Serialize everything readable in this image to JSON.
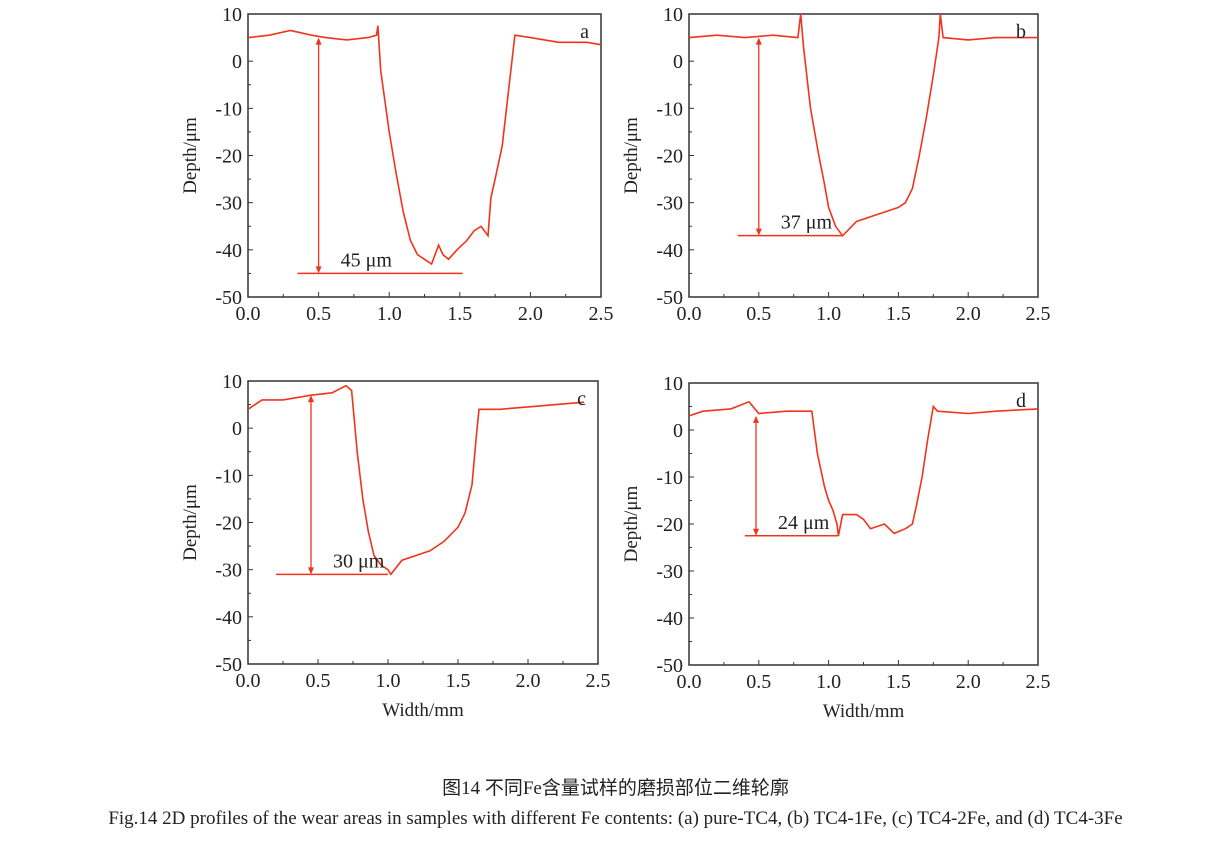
{
  "chart_data": [
    {
      "type": "line",
      "panel_label": "a",
      "xlabel": "",
      "ylabel": "Depth/μm",
      "xlim": [
        0,
        2.5
      ],
      "ylim": [
        -50,
        10
      ],
      "xticks": [
        "0.0",
        "0.5",
        "1.0",
        "1.5",
        "2.0",
        "2.5"
      ],
      "yticks": [
        "10",
        "0",
        "-10",
        "-20",
        "-30",
        "-40",
        "-50"
      ],
      "color": "#f0341c",
      "x": [
        0,
        0.15,
        0.3,
        0.45,
        0.55,
        0.7,
        0.85,
        0.91,
        0.92,
        0.94,
        1.0,
        1.05,
        1.1,
        1.15,
        1.2,
        1.25,
        1.3,
        1.35,
        1.38,
        1.42,
        1.48,
        1.55,
        1.6,
        1.65,
        1.7,
        1.72,
        1.75,
        1.8,
        1.85,
        1.89,
        2.0,
        2.2,
        2.4,
        2.5
      ],
      "y": [
        5,
        5.5,
        6.5,
        5.5,
        5,
        4.5,
        5,
        5.5,
        7.5,
        -2,
        -15,
        -24,
        -32,
        -38,
        -41,
        -42,
        -43,
        -39,
        -41,
        -42,
        -40,
        -38,
        -36,
        -35,
        -37,
        -29,
        -25,
        -18,
        -5,
        5.5,
        5,
        4,
        4,
        3.5
      ],
      "annotation": {
        "label": "45 μm",
        "arrow_x": 0.5,
        "arrow_from": 5,
        "arrow_to": -45,
        "line_y": -45,
        "line_x": [
          0.35,
          1.52
        ]
      }
    },
    {
      "type": "line",
      "panel_label": "b",
      "xlabel": "",
      "ylabel": "Depth/μm",
      "xlim": [
        0,
        2.5
      ],
      "ylim": [
        -50,
        10
      ],
      "xticks": [
        "0.0",
        "0.5",
        "1.0",
        "1.5",
        "2.0",
        "2.5"
      ],
      "yticks": [
        "10",
        "0",
        "-10",
        "-20",
        "-30",
        "-40",
        "-50"
      ],
      "color": "#f0341c",
      "x": [
        0,
        0.2,
        0.4,
        0.6,
        0.78,
        0.8,
        0.82,
        0.87,
        0.93,
        0.97,
        1.0,
        1.05,
        1.1,
        1.2,
        1.3,
        1.4,
        1.5,
        1.55,
        1.6,
        1.65,
        1.7,
        1.75,
        1.79,
        1.8,
        1.82,
        2.0,
        2.2,
        2.5
      ],
      "y": [
        5,
        5.5,
        5,
        5.5,
        5,
        10,
        3,
        -10,
        -20,
        -26,
        -31,
        -35,
        -37,
        -34,
        -33,
        -32,
        -31,
        -30,
        -27,
        -20,
        -12,
        -3,
        5,
        10,
        5,
        4.5,
        5,
        5
      ],
      "annotation": {
        "label": "37 μm",
        "arrow_x": 0.5,
        "arrow_from": 5,
        "arrow_to": -37,
        "line_y": -37,
        "line_x": [
          0.35,
          1.1
        ]
      }
    },
    {
      "type": "line",
      "panel_label": "c",
      "xlabel": "Width/mm",
      "ylabel": "Depth/μm",
      "xlim": [
        0,
        2.5
      ],
      "ylim": [
        -50,
        10
      ],
      "xticks": [
        "0.0",
        "0.5",
        "1.0",
        "1.5",
        "2.0",
        "2.5"
      ],
      "yticks": [
        "10",
        "0",
        "-10",
        "-20",
        "-30",
        "-40",
        "-50"
      ],
      "color": "#f0341c",
      "x": [
        0,
        0.1,
        0.25,
        0.45,
        0.6,
        0.7,
        0.74,
        0.78,
        0.82,
        0.86,
        0.9,
        0.95,
        1.0,
        1.02,
        1.1,
        1.2,
        1.3,
        1.4,
        1.5,
        1.55,
        1.6,
        1.63,
        1.65,
        1.8,
        2.0,
        2.2,
        2.4
      ],
      "y": [
        4,
        6,
        6,
        7,
        7.5,
        9,
        8,
        -5,
        -15,
        -22,
        -27,
        -29,
        -30,
        -31,
        -28,
        -27,
        -26,
        -24,
        -21,
        -18,
        -12,
        -2,
        4,
        4,
        4.5,
        5,
        5.5
      ],
      "annotation": {
        "label": "30 μm",
        "arrow_x": 0.45,
        "arrow_from": 7,
        "arrow_to": -31,
        "line_y": -31,
        "line_x": [
          0.2,
          1.0
        ]
      }
    },
    {
      "type": "line",
      "panel_label": "d",
      "xlabel": "Width/mm",
      "ylabel": "Depth/μm",
      "xlim": [
        0,
        2.5
      ],
      "ylim": [
        -50,
        10
      ],
      "xticks": [
        "0.0",
        "0.5",
        "1.0",
        "1.5",
        "2.0",
        "2.5"
      ],
      "yticks": [
        "10",
        "0",
        "-10",
        "-20",
        "-30",
        "-40",
        "-50"
      ],
      "color": "#f0341c",
      "x": [
        0,
        0.1,
        0.3,
        0.43,
        0.5,
        0.7,
        0.88,
        0.92,
        0.97,
        1.0,
        1.03,
        1.06,
        1.07,
        1.1,
        1.2,
        1.25,
        1.3,
        1.4,
        1.47,
        1.55,
        1.6,
        1.63,
        1.67,
        1.71,
        1.75,
        1.78,
        2.0,
        2.2,
        2.5
      ],
      "y": [
        3,
        4,
        4.5,
        6,
        3.5,
        4,
        4,
        -5,
        -12,
        -15,
        -17,
        -20,
        -22.5,
        -18,
        -18,
        -19,
        -21,
        -20,
        -22,
        -21,
        -20,
        -16,
        -10,
        -2,
        5,
        4,
        3.5,
        4,
        4.5
      ],
      "annotation": {
        "label": "24 μm",
        "arrow_x": 0.48,
        "arrow_from": 3,
        "arrow_to": -22.5,
        "line_y": -22.5,
        "line_x": [
          0.4,
          1.07
        ]
      }
    }
  ],
  "caption_cn": "图14  不同Fe含量试样的磨损部位二维轮廓",
  "caption_en": "Fig.14  2D profiles of the wear areas in samples with different Fe contents: (a) pure-TC4, (b) TC4-1Fe, (c) TC4-2Fe, and (d) TC4-3Fe"
}
